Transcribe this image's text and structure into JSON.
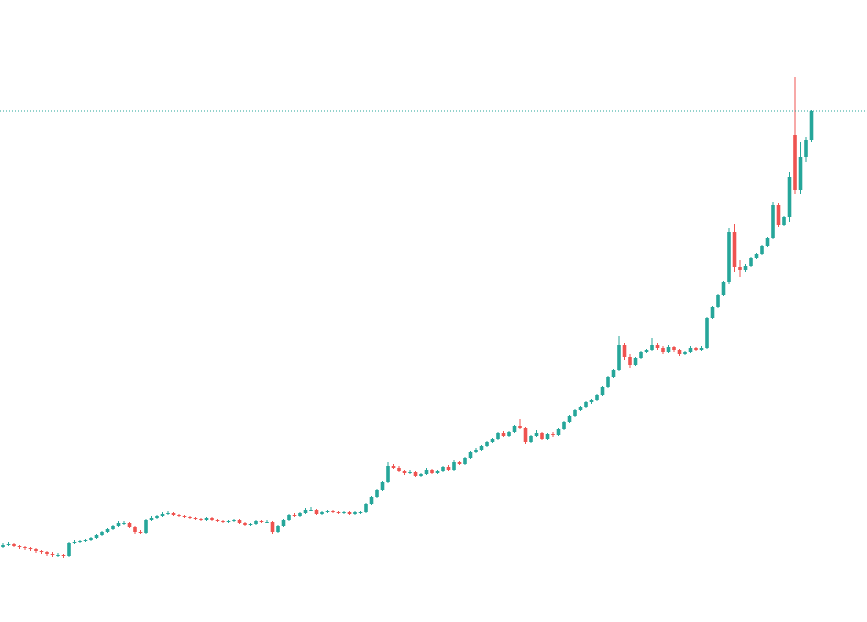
{
  "chart_data": {
    "type": "candlestick",
    "up_color": "#26a69a",
    "down_color": "#ef5350",
    "last_price_color": "#26a69a",
    "ylim": [
      0,
      622
    ],
    "last_price": 511,
    "candles": [
      [
        75,
        79,
        74,
        77
      ],
      [
        77,
        80,
        76,
        78
      ],
      [
        78,
        79,
        75,
        76
      ],
      [
        76,
        77,
        73,
        75
      ],
      [
        75,
        76,
        72,
        74
      ],
      [
        74,
        75,
        71,
        73
      ],
      [
        73,
        74,
        69,
        71
      ],
      [
        71,
        72,
        68,
        70
      ],
      [
        70,
        71,
        66,
        68
      ],
      [
        68,
        70,
        65,
        67
      ],
      [
        67,
        69,
        65,
        67
      ],
      [
        67,
        68,
        64,
        66
      ],
      [
        66,
        80,
        65,
        79
      ],
      [
        79,
        82,
        78,
        80
      ],
      [
        80,
        82,
        79,
        81
      ],
      [
        81,
        83,
        80,
        82
      ],
      [
        82,
        85,
        81,
        84
      ],
      [
        84,
        88,
        83,
        87
      ],
      [
        87,
        91,
        86,
        90
      ],
      [
        90,
        94,
        89,
        93
      ],
      [
        93,
        97,
        92,
        96
      ],
      [
        96,
        101,
        95,
        99
      ],
      [
        99,
        101,
        97,
        99
      ],
      [
        99,
        100,
        94,
        95
      ],
      [
        95,
        96,
        88,
        90
      ],
      [
        90,
        92,
        88,
        89
      ],
      [
        89,
        103,
        88,
        102
      ],
      [
        102,
        106,
        101,
        104
      ],
      [
        104,
        107,
        103,
        106
      ],
      [
        106,
        110,
        105,
        108
      ],
      [
        108,
        111,
        107,
        109
      ],
      [
        109,
        110,
        106,
        107
      ],
      [
        107,
        108,
        105,
        106
      ],
      [
        106,
        107,
        104,
        105
      ],
      [
        105,
        106,
        103,
        104
      ],
      [
        104,
        105,
        102,
        103
      ],
      [
        103,
        104,
        101,
        102
      ],
      [
        102,
        105,
        101,
        104
      ],
      [
        104,
        105,
        101,
        102
      ],
      [
        102,
        103,
        100,
        101
      ],
      [
        101,
        102,
        99,
        100
      ],
      [
        100,
        102,
        99,
        101
      ],
      [
        101,
        103,
        100,
        102
      ],
      [
        102,
        103,
        98,
        99
      ],
      [
        99,
        100,
        96,
        97
      ],
      [
        97,
        99,
        96,
        98
      ],
      [
        98,
        102,
        97,
        101
      ],
      [
        101,
        102,
        99,
        100
      ],
      [
        100,
        102,
        99,
        100
      ],
      [
        100,
        101,
        88,
        90
      ],
      [
        90,
        97,
        89,
        96
      ],
      [
        96,
        103,
        95,
        102
      ],
      [
        102,
        108,
        101,
        107
      ],
      [
        107,
        109,
        105,
        106
      ],
      [
        106,
        110,
        105,
        109
      ],
      [
        109,
        114,
        108,
        112
      ],
      [
        112,
        115,
        111,
        112
      ],
      [
        112,
        113,
        107,
        108
      ],
      [
        108,
        111,
        107,
        110
      ],
      [
        110,
        112,
        109,
        111
      ],
      [
        111,
        112,
        109,
        110
      ],
      [
        110,
        111,
        108,
        109
      ],
      [
        109,
        111,
        108,
        110
      ],
      [
        110,
        111,
        107,
        108
      ],
      [
        108,
        111,
        107,
        110
      ],
      [
        110,
        111,
        108,
        110
      ],
      [
        110,
        119,
        109,
        118
      ],
      [
        118,
        126,
        117,
        125
      ],
      [
        125,
        133,
        124,
        132
      ],
      [
        132,
        141,
        131,
        140
      ],
      [
        140,
        160,
        139,
        156
      ],
      [
        156,
        158,
        153,
        154
      ],
      [
        154,
        156,
        150,
        151
      ],
      [
        151,
        152,
        147,
        149
      ],
      [
        149,
        152,
        148,
        150
      ],
      [
        150,
        151,
        145,
        146
      ],
      [
        146,
        149,
        145,
        148
      ],
      [
        148,
        154,
        147,
        152
      ],
      [
        152,
        153,
        148,
        149
      ],
      [
        149,
        152,
        148,
        151
      ],
      [
        151,
        156,
        150,
        155
      ],
      [
        155,
        157,
        151,
        152
      ],
      [
        152,
        162,
        151,
        160
      ],
      [
        160,
        161,
        157,
        158
      ],
      [
        158,
        165,
        157,
        164
      ],
      [
        164,
        171,
        163,
        170
      ],
      [
        170,
        174,
        169,
        172
      ],
      [
        172,
        177,
        171,
        176
      ],
      [
        176,
        181,
        175,
        180
      ],
      [
        180,
        184,
        179,
        183
      ],
      [
        183,
        190,
        182,
        189
      ],
      [
        189,
        191,
        185,
        186
      ],
      [
        186,
        191,
        185,
        190
      ],
      [
        190,
        197,
        189,
        196
      ],
      [
        196,
        203,
        193,
        194
      ],
      [
        194,
        195,
        178,
        180
      ],
      [
        180,
        187,
        179,
        186
      ],
      [
        186,
        192,
        185,
        189
      ],
      [
        189,
        190,
        182,
        183
      ],
      [
        183,
        189,
        182,
        188
      ],
      [
        188,
        190,
        185,
        187
      ],
      [
        187,
        194,
        186,
        193
      ],
      [
        193,
        201,
        192,
        200
      ],
      [
        200,
        207,
        199,
        206
      ],
      [
        206,
        213,
        205,
        212
      ],
      [
        212,
        216,
        211,
        215
      ],
      [
        215,
        221,
        214,
        220
      ],
      [
        220,
        223,
        218,
        222
      ],
      [
        222,
        228,
        221,
        227
      ],
      [
        227,
        236,
        226,
        235
      ],
      [
        235,
        246,
        234,
        245
      ],
      [
        245,
        253,
        244,
        252
      ],
      [
        252,
        286,
        251,
        277
      ],
      [
        277,
        279,
        262,
        265
      ],
      [
        265,
        268,
        254,
        257
      ],
      [
        257,
        265,
        256,
        264
      ],
      [
        264,
        271,
        263,
        270
      ],
      [
        270,
        273,
        269,
        272
      ],
      [
        272,
        284,
        271,
        277
      ],
      [
        277,
        279,
        272,
        274
      ],
      [
        274,
        276,
        268,
        270
      ],
      [
        270,
        277,
        269,
        275
      ],
      [
        275,
        276,
        270,
        272
      ],
      [
        272,
        273,
        266,
        268
      ],
      [
        268,
        271,
        267,
        270
      ],
      [
        270,
        276,
        269,
        274
      ],
      [
        274,
        275,
        271,
        272
      ],
      [
        272,
        276,
        271,
        274
      ],
      [
        274,
        305,
        273,
        304
      ],
      [
        304,
        316,
        303,
        315
      ],
      [
        315,
        328,
        314,
        327
      ],
      [
        327,
        341,
        326,
        340
      ],
      [
        340,
        394,
        338,
        390
      ],
      [
        390,
        398,
        350,
        355
      ],
      [
        355,
        362,
        345,
        352
      ],
      [
        352,
        358,
        350,
        356
      ],
      [
        356,
        365,
        355,
        364
      ],
      [
        364,
        369,
        363,
        368
      ],
      [
        368,
        377,
        367,
        376
      ],
      [
        376,
        385,
        375,
        384
      ],
      [
        384,
        420,
        383,
        417
      ],
      [
        417,
        419,
        395,
        397
      ],
      [
        397,
        406,
        396,
        405
      ],
      [
        405,
        450,
        400,
        445
      ],
      [
        487,
        545,
        428,
        432
      ],
      [
        432,
        480,
        428,
        465
      ],
      [
        465,
        485,
        460,
        482
      ],
      [
        482,
        512,
        480,
        511
      ]
    ]
  }
}
